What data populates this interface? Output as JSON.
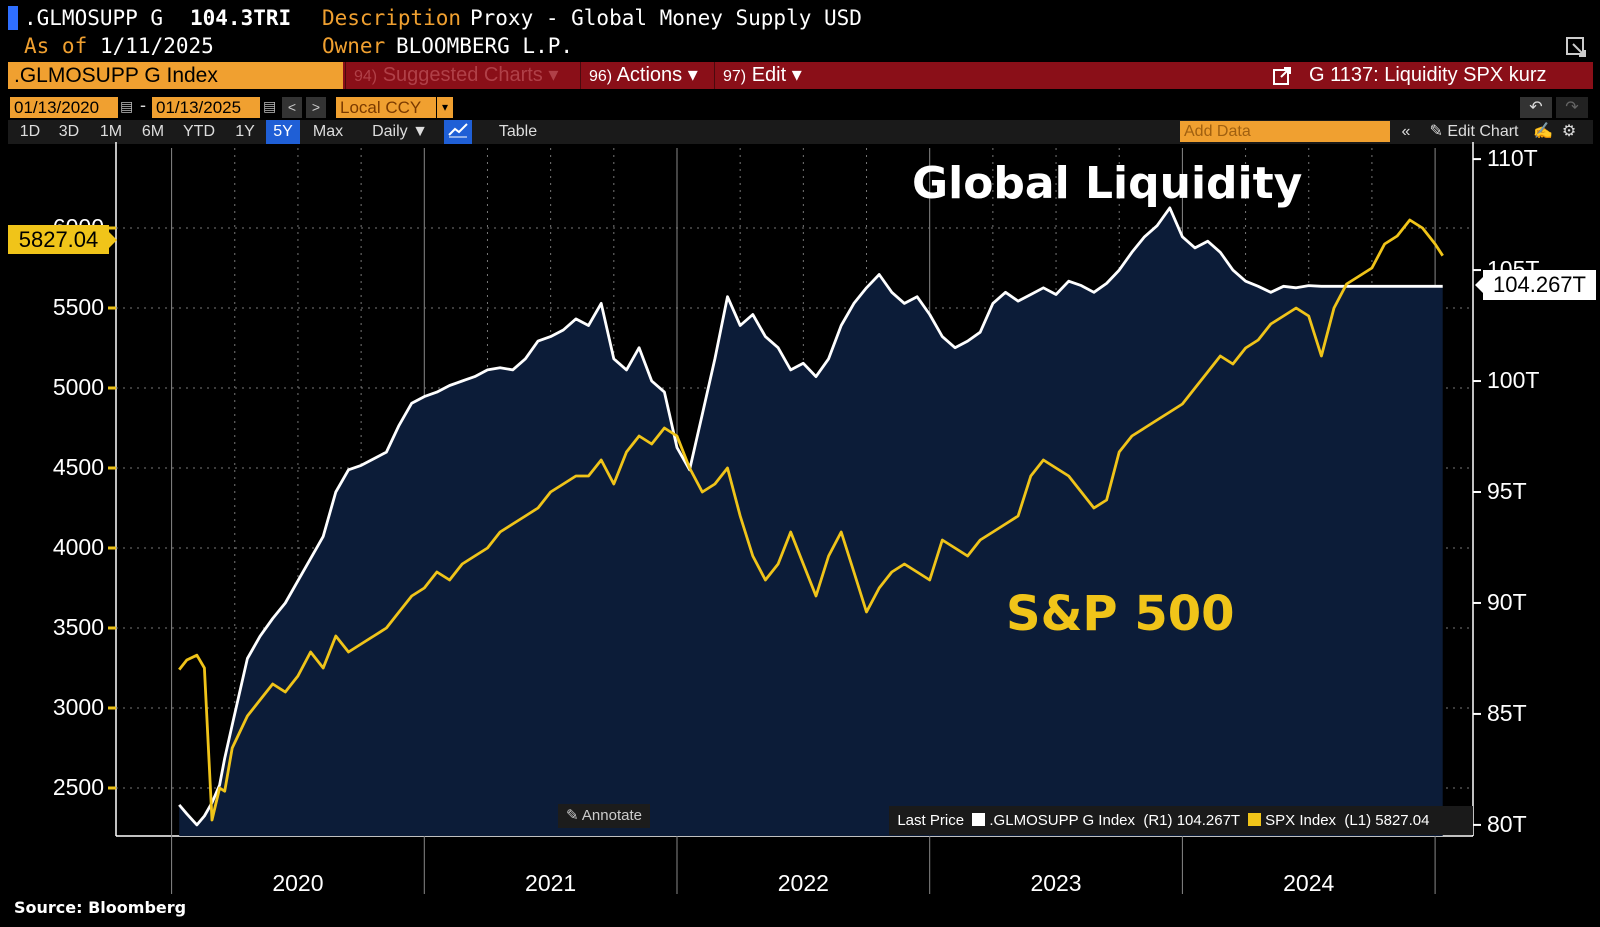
{
  "header": {
    "ticker": ".GLMOSUPP G",
    "value": "104.3TRI",
    "description_label": "Description",
    "description": "Proxy - Global Money Supply USD",
    "asof_label": "As of",
    "asof": "1/11/2025",
    "owner_label": "Owner",
    "owner": "BLOOMBERG L.P."
  },
  "toolbar": {
    "security": ".GLMOSUPP G Index",
    "suggested_num": "94)",
    "suggested": "Suggested Charts",
    "actions_num": "96)",
    "actions": "Actions",
    "edit_num": "97)",
    "edit": "Edit",
    "chart_name": "G 1137: Liquidity SPX kurz"
  },
  "daterow": {
    "start": "01/13/2020",
    "end": "01/13/2025",
    "currency": "Local CCY"
  },
  "periods": [
    "1D",
    "3D",
    "1M",
    "6M",
    "YTD",
    "1Y",
    "5Y",
    "Max"
  ],
  "active_period": "5Y",
  "frequency": "Daily",
  "table_label": "Table",
  "add_data_placeholder": "Add Data",
  "edit_chart": "Edit Chart",
  "annotate": "Annotate",
  "source": "Source: Bloomberg",
  "colors": {
    "liquidity": "#ffffff",
    "spx": "#f0c419",
    "area": "#0c1c38",
    "accent": "#f0a030"
  },
  "chart_data": {
    "type": "line",
    "annotations": [
      "Global Liquidity",
      "S&P 500"
    ],
    "x_tick_labels": [
      "2020",
      "2021",
      "2022",
      "2023",
      "2024"
    ],
    "left_axis": {
      "ticks": [
        "2500",
        "3000",
        "3500",
        "4000",
        "4500",
        "5000",
        "5500",
        "6000"
      ],
      "range": [
        2200,
        6500
      ]
    },
    "right_axis": {
      "ticks": [
        "80T",
        "85T",
        "90T",
        "95T",
        "100T",
        "105T",
        "110T"
      ],
      "range": [
        79.5,
        110.5
      ]
    },
    "last_price_left": "5827.04",
    "last_price_right": "104.267T",
    "legend": {
      "title": "Last Price",
      "items": [
        {
          "name": ".GLMOSUPP G Index",
          "axis": "(R1)",
          "value": "104.267T"
        },
        {
          "name": "SPX Index",
          "axis": "(L1)",
          "value": "5827.04"
        }
      ]
    },
    "series": [
      {
        "name": "SPX Index",
        "axis": "left",
        "x": [
          2020.03,
          2020.06,
          2020.1,
          2020.13,
          2020.16,
          2020.19,
          2020.21,
          2020.24,
          2020.27,
          2020.3,
          2020.35,
          2020.4,
          2020.45,
          2020.5,
          2020.55,
          2020.6,
          2020.65,
          2020.7,
          2020.75,
          2020.8,
          2020.85,
          2020.9,
          2020.95,
          2021.0,
          2021.05,
          2021.1,
          2021.15,
          2021.2,
          2021.25,
          2021.3,
          2021.35,
          2021.4,
          2021.45,
          2021.5,
          2021.55,
          2021.6,
          2021.65,
          2021.7,
          2021.75,
          2021.8,
          2021.85,
          2021.9,
          2021.95,
          2022.0,
          2022.05,
          2022.1,
          2022.15,
          2022.2,
          2022.25,
          2022.3,
          2022.35,
          2022.4,
          2022.45,
          2022.5,
          2022.55,
          2022.6,
          2022.65,
          2022.7,
          2022.75,
          2022.8,
          2022.85,
          2022.9,
          2022.95,
          2023.0,
          2023.05,
          2023.1,
          2023.15,
          2023.2,
          2023.25,
          2023.3,
          2023.35,
          2023.4,
          2023.45,
          2023.5,
          2023.55,
          2023.6,
          2023.65,
          2023.7,
          2023.75,
          2023.8,
          2023.85,
          2023.9,
          2023.95,
          2024.0,
          2024.05,
          2024.1,
          2024.15,
          2024.2,
          2024.25,
          2024.3,
          2024.35,
          2024.4,
          2024.45,
          2024.5,
          2024.55,
          2024.6,
          2024.65,
          2024.7,
          2024.75,
          2024.8,
          2024.85,
          2024.9,
          2024.95,
          2025.0,
          2025.03
        ],
        "y": [
          3240,
          3300,
          3330,
          3250,
          2300,
          2500,
          2480,
          2750,
          2850,
          2950,
          3050,
          3150,
          3100,
          3200,
          3350,
          3250,
          3450,
          3350,
          3400,
          3450,
          3500,
          3600,
          3700,
          3750,
          3850,
          3800,
          3900,
          3950,
          4000,
          4100,
          4150,
          4200,
          4250,
          4350,
          4400,
          4450,
          4450,
          4550,
          4400,
          4600,
          4700,
          4650,
          4750,
          4700,
          4500,
          4350,
          4400,
          4500,
          4200,
          3950,
          3800,
          3900,
          4100,
          3900,
          3700,
          3950,
          4100,
          3850,
          3600,
          3750,
          3850,
          3900,
          3850,
          3800,
          4050,
          4000,
          3950,
          4050,
          4100,
          4150,
          4200,
          4450,
          4550,
          4500,
          4450,
          4350,
          4250,
          4300,
          4600,
          4700,
          4750,
          4800,
          4850,
          4900,
          5000,
          5100,
          5200,
          5150,
          5250,
          5300,
          5400,
          5450,
          5500,
          5450,
          5200,
          5500,
          5650,
          5700,
          5750,
          5900,
          5950,
          6050,
          6000,
          5900,
          5827.04
        ]
      },
      {
        "name": ".GLMOSUPP G Index",
        "axis": "right",
        "x": [
          2020.03,
          2020.06,
          2020.1,
          2020.13,
          2020.16,
          2020.19,
          2020.21,
          2020.24,
          2020.27,
          2020.3,
          2020.35,
          2020.4,
          2020.45,
          2020.5,
          2020.55,
          2020.6,
          2020.65,
          2020.7,
          2020.75,
          2020.8,
          2020.85,
          2020.9,
          2020.95,
          2021.0,
          2021.05,
          2021.1,
          2021.15,
          2021.2,
          2021.25,
          2021.3,
          2021.35,
          2021.4,
          2021.45,
          2021.5,
          2021.55,
          2021.6,
          2021.65,
          2021.7,
          2021.75,
          2021.8,
          2021.85,
          2021.9,
          2021.95,
          2022.0,
          2022.05,
          2022.1,
          2022.15,
          2022.2,
          2022.25,
          2022.3,
          2022.35,
          2022.4,
          2022.45,
          2022.5,
          2022.55,
          2022.6,
          2022.65,
          2022.7,
          2022.75,
          2022.8,
          2022.85,
          2022.9,
          2022.95,
          2023.0,
          2023.05,
          2023.1,
          2023.15,
          2023.2,
          2023.25,
          2023.3,
          2023.35,
          2023.4,
          2023.45,
          2023.5,
          2023.55,
          2023.6,
          2023.65,
          2023.7,
          2023.75,
          2023.8,
          2023.85,
          2023.9,
          2023.95,
          2024.0,
          2024.05,
          2024.1,
          2024.15,
          2024.2,
          2024.25,
          2024.3,
          2024.35,
          2024.4,
          2024.45,
          2024.5,
          2024.55,
          2024.6,
          2024.65,
          2024.7,
          2024.75,
          2024.8,
          2024.85,
          2024.9,
          2024.95,
          2025.0,
          2025.03
        ],
        "y": [
          80.9,
          80.5,
          80.0,
          80.4,
          81.0,
          81.8,
          83.0,
          84.5,
          86.0,
          87.5,
          88.5,
          89.3,
          90.0,
          91.0,
          92.0,
          93.0,
          95.0,
          96.0,
          96.2,
          96.5,
          96.8,
          98.0,
          99.0,
          99.3,
          99.5,
          99.8,
          100.0,
          100.2,
          100.5,
          100.6,
          100.5,
          101.0,
          101.8,
          102.0,
          102.3,
          102.8,
          102.5,
          103.5,
          101.0,
          100.5,
          101.5,
          100.0,
          99.5,
          97.0,
          96.0,
          98.5,
          101.0,
          103.8,
          102.5,
          103.0,
          102.0,
          101.5,
          100.5,
          100.8,
          100.2,
          101.0,
          102.5,
          103.5,
          104.2,
          104.8,
          104.0,
          103.5,
          103.8,
          103.0,
          102.0,
          101.5,
          101.8,
          102.2,
          103.5,
          104.0,
          103.6,
          103.9,
          104.2,
          103.9,
          104.5,
          104.3,
          104.0,
          104.4,
          105.0,
          105.8,
          106.5,
          107.0,
          107.8,
          106.5,
          106.0,
          106.3,
          105.8,
          105.0,
          104.5,
          104.267,
          104.0,
          104.267,
          104.2,
          104.3,
          104.267,
          104.267,
          104.267,
          104.267,
          104.267,
          104.267,
          104.267,
          104.267,
          104.267,
          104.267,
          104.267
        ]
      }
    ]
  }
}
